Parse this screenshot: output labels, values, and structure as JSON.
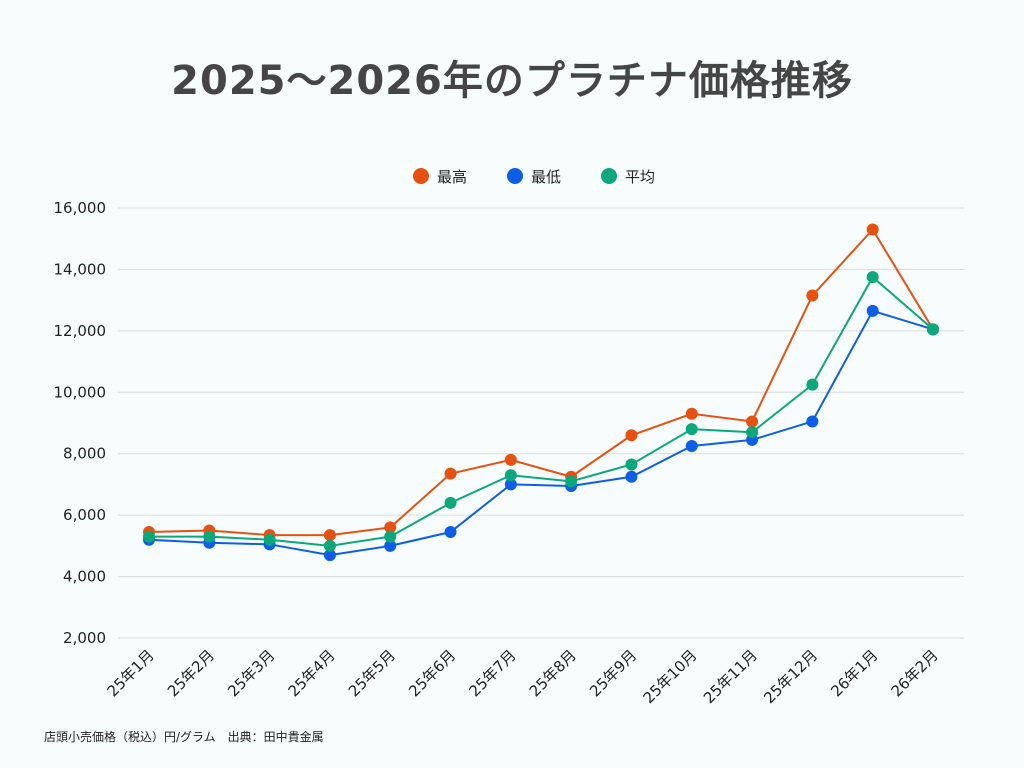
{
  "chart_data": {
    "type": "line",
    "title": "2025～2026年のプラチナ価格推移",
    "xlabel": "",
    "ylabel": "",
    "ylim": [
      2000,
      16000
    ],
    "yticks": [
      "2,000",
      "4,000",
      "6,000",
      "8,000",
      "10,000",
      "12,000",
      "14,000",
      "16,000"
    ],
    "ytick_values": [
      2000,
      4000,
      6000,
      8000,
      10000,
      12000,
      14000,
      16000
    ],
    "grid": true,
    "legend_position": "top-center",
    "categories": [
      "25年1月",
      "25年2月",
      "25年3月",
      "25年4月",
      "25年5月",
      "25年6月",
      "25年7月",
      "25年8月",
      "25年9月",
      "25年10月",
      "25年11月",
      "25年12月",
      "26年1月",
      "26年2月"
    ],
    "series": [
      {
        "name": "最高",
        "color": "#e8500f",
        "values": [
          5450,
          5500,
          5350,
          5350,
          5600,
          7350,
          7800,
          7250,
          8600,
          9300,
          9050,
          13150,
          15300,
          12050
        ]
      },
      {
        "name": "最低",
        "color": "#0c5ee8",
        "values": [
          5200,
          5100,
          5050,
          4700,
          5000,
          5450,
          7000,
          6950,
          7250,
          8250,
          8450,
          9050,
          12650,
          12050
        ]
      },
      {
        "name": "平均",
        "color": "#0aa87a",
        "values": [
          5300,
          5300,
          5200,
          5000,
          5300,
          6400,
          7300,
          7100,
          7650,
          8800,
          8700,
          10250,
          13750,
          12050
        ]
      }
    ]
  },
  "footnote": "店頭小売価格（税込）円/グラム　出典：田中貴金属",
  "colors": {
    "grid": "#d8dcdc",
    "background": "#f7fcfd"
  }
}
